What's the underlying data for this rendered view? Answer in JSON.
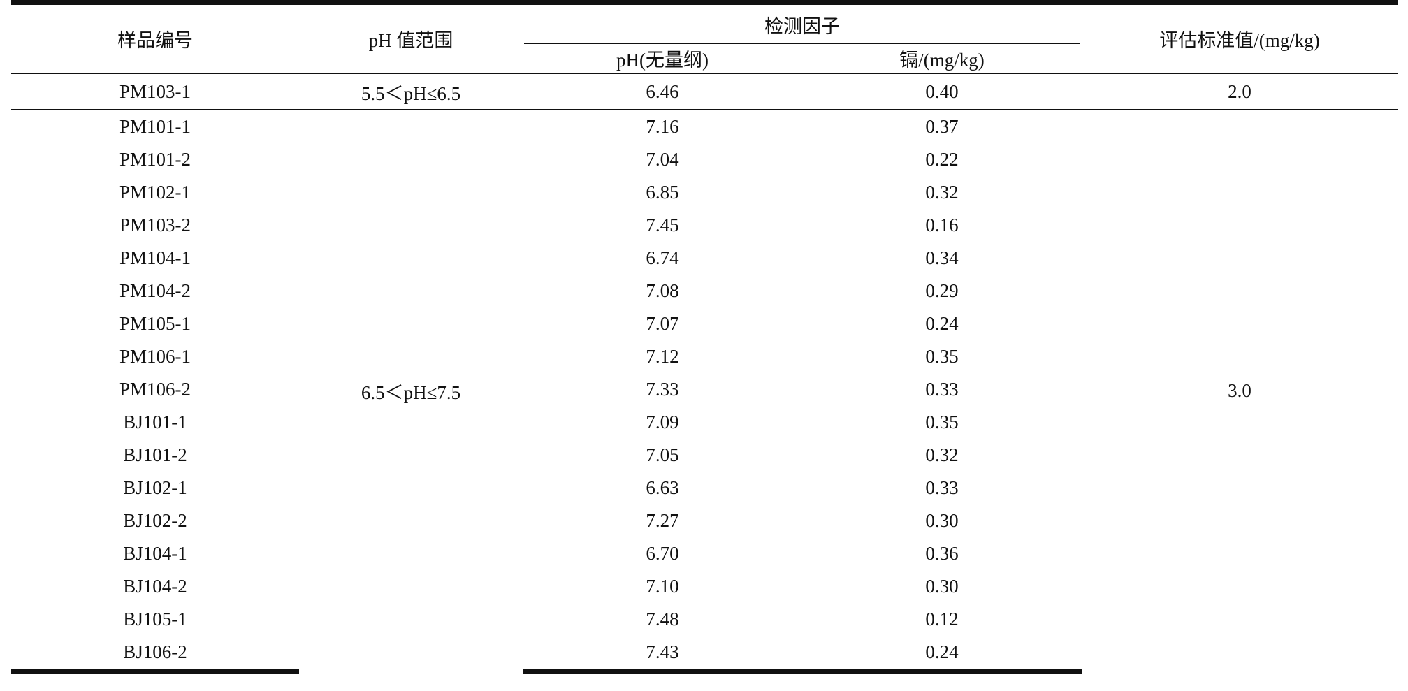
{
  "header": {
    "sample_id": "样品编号",
    "ph_range": "pH 值范围",
    "detection_factors": "检测因子",
    "ph_unit": "pH(无量纲)",
    "cd_unit": "镉/(mg/kg)",
    "standard": "评估标准值/(mg/kg)"
  },
  "group_a": {
    "ph_range": "5.5＜pH≤6.5",
    "standard": "2.0",
    "rows": [
      {
        "id": "PM103-1",
        "ph": "6.46",
        "cd": "0.40"
      }
    ]
  },
  "group_b": {
    "ph_range": "6.5＜pH≤7.5",
    "standard": "3.0",
    "rows": [
      {
        "id": "PM101-1",
        "ph": "7.16",
        "cd": "0.37"
      },
      {
        "id": "PM101-2",
        "ph": "7.04",
        "cd": "0.22"
      },
      {
        "id": "PM102-1",
        "ph": "6.85",
        "cd": "0.32"
      },
      {
        "id": "PM103-2",
        "ph": "7.45",
        "cd": "0.16"
      },
      {
        "id": "PM104-1",
        "ph": "6.74",
        "cd": "0.34"
      },
      {
        "id": "PM104-2",
        "ph": "7.08",
        "cd": "0.29"
      },
      {
        "id": "PM105-1",
        "ph": "7.07",
        "cd": "0.24"
      },
      {
        "id": "PM106-1",
        "ph": "7.12",
        "cd": "0.35"
      },
      {
        "id": "PM106-2",
        "ph": "7.33",
        "cd": "0.33"
      },
      {
        "id": "BJ101-1",
        "ph": "7.09",
        "cd": "0.35"
      },
      {
        "id": "BJ101-2",
        "ph": "7.05",
        "cd": "0.32"
      },
      {
        "id": "BJ102-1",
        "ph": "6.63",
        "cd": "0.33"
      },
      {
        "id": "BJ102-2",
        "ph": "7.27",
        "cd": "0.30"
      },
      {
        "id": "BJ104-1",
        "ph": "6.70",
        "cd": "0.36"
      },
      {
        "id": "BJ104-2",
        "ph": "7.10",
        "cd": "0.30"
      },
      {
        "id": "BJ105-1",
        "ph": "7.48",
        "cd": "0.12"
      },
      {
        "id": "BJ106-2",
        "ph": "7.43",
        "cd": "0.24"
      }
    ]
  }
}
